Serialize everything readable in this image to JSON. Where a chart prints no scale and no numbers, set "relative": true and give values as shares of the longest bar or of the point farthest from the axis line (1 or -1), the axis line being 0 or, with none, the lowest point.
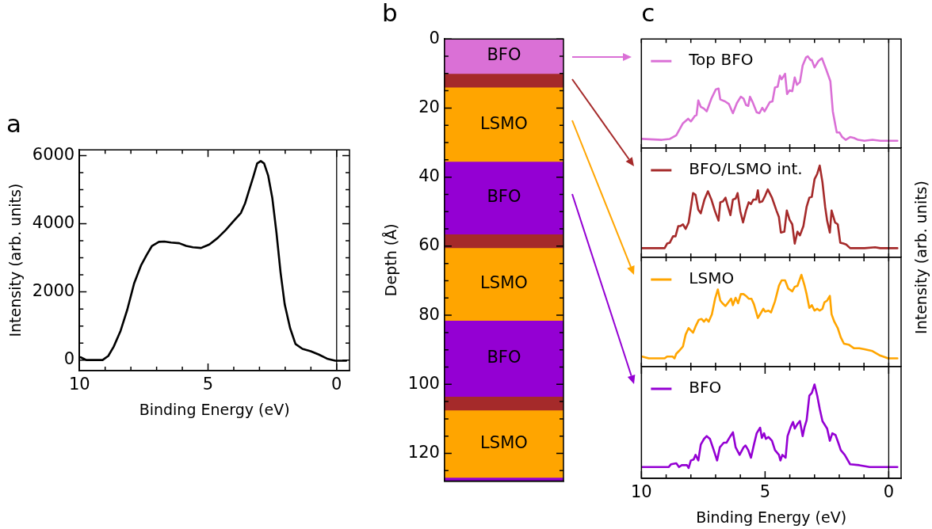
{
  "chart_data": [
    {
      "type": "line",
      "title": "a",
      "xlabel": "Binding Energy (eV)",
      "ylabel": "Intensity (arb. units)",
      "xlim": [
        10,
        -0.5
      ],
      "ylim": [
        -310,
        6170
      ],
      "xticks": [
        10,
        {
          "value": 9,
          "label": null
        },
        {
          "value": 8,
          "label": null
        },
        {
          "value": 7,
          "label": null
        },
        {
          "value": 6,
          "label": null
        },
        5,
        {
          "value": 4,
          "label": null
        },
        {
          "value": 3,
          "label": null
        },
        {
          "value": 2,
          "label": null
        },
        {
          "value": 1,
          "label": null
        },
        0
      ],
      "yticks": [
        0,
        {
          "value": 500,
          "label": null
        },
        {
          "value": 1000,
          "label": null
        },
        {
          "value": 1500,
          "label": null
        },
        2000,
        {
          "value": 2500,
          "label": null
        },
        {
          "value": 3000,
          "label": null
        },
        {
          "value": 3500,
          "label": null
        },
        4000,
        {
          "value": 4500,
          "label": null
        },
        {
          "value": 5000,
          "label": null
        },
        {
          "value": 5500,
          "label": null
        },
        6000
      ],
      "x": [
        9.95,
        9.73,
        9.1,
        8.88,
        8.67,
        8.4,
        8.14,
        7.87,
        7.61,
        7.39,
        7.18,
        6.91,
        6.7,
        6.44,
        6.12,
        5.85,
        5.59,
        5.27,
        4.95,
        4.63,
        4.31,
        4.04,
        3.72,
        3.56,
        3.4,
        3.24,
        3.09,
        2.95,
        2.82,
        2.66,
        2.5,
        2.34,
        2.18,
        2.02,
        1.81,
        1.6,
        1.33,
        1.01,
        0.69,
        0.37,
        0.05,
        -0.37
      ],
      "series": [
        {
          "color": "#000000",
          "values": [
            80,
            0,
            0,
            120,
            390,
            860,
            1480,
            2260,
            2770,
            3080,
            3350,
            3470,
            3480,
            3450,
            3430,
            3350,
            3310,
            3290,
            3390,
            3580,
            3820,
            4050,
            4320,
            4600,
            4990,
            5380,
            5770,
            5840,
            5770,
            5410,
            4750,
            3740,
            2570,
            1640,
            940,
            470,
            330,
            260,
            160,
            40,
            -20,
            -20
          ]
        }
      ],
      "ref_lines": [
        {
          "axis": "x",
          "value": 0
        }
      ],
      "marker": "none",
      "line_style": "solid",
      "grid": false,
      "legend": false
    },
    {
      "type": "bar",
      "title": "b",
      "ylabel": "Depth (Å)",
      "stacked": true,
      "categories": [
        null
      ],
      "ylim": [
        128,
        0
      ],
      "yticks": [
        0,
        {
          "value": 5,
          "label": null
        },
        {
          "value": 10,
          "label": null
        },
        {
          "value": 15,
          "label": null
        },
        20,
        {
          "value": 25,
          "label": null
        },
        {
          "value": 30,
          "label": null
        },
        {
          "value": 35,
          "label": null
        },
        40,
        {
          "value": 45,
          "label": null
        },
        {
          "value": 50,
          "label": null
        },
        {
          "value": 55,
          "label": null
        },
        60,
        {
          "value": 65,
          "label": null
        },
        {
          "value": 70,
          "label": null
        },
        {
          "value": 75,
          "label": null
        },
        80,
        {
          "value": 85,
          "label": null
        },
        {
          "value": 90,
          "label": null
        },
        {
          "value": 95,
          "label": null
        },
        100,
        {
          "value": 105,
          "label": null
        },
        {
          "value": 110,
          "label": null
        },
        {
          "value": 115,
          "label": null
        },
        120,
        {
          "value": 125,
          "label": null
        }
      ],
      "series": [
        {
          "name": "BFO",
          "color": "#da70d6",
          "values": [
            10
          ]
        },
        {
          "color": "#a52a2a",
          "values": [
            4
          ]
        },
        {
          "name": "LSMO",
          "color": "#ffa500",
          "values": [
            21.5
          ]
        },
        {
          "name": "BFO",
          "color": "#9400d3",
          "values": [
            21
          ]
        },
        {
          "color": "#a52a2a",
          "values": [
            4
          ]
        },
        {
          "name": "LSMO",
          "color": "#ffa500",
          "values": [
            21
          ]
        },
        {
          "name": "BFO",
          "color": "#9400d3",
          "values": [
            22
          ]
        },
        {
          "color": "#a52a2a",
          "values": [
            4
          ]
        },
        {
          "name": "LSMO",
          "color": "#ffa500",
          "values": [
            19.5
          ]
        },
        {
          "color": "#9400d3",
          "values": [
            1
          ]
        }
      ],
      "tick_labels": "y",
      "grid": false,
      "legend": false
    },
    {
      "type": "line",
      "title": "c",
      "relative": true,
      "xlim": [
        10,
        -0.5
      ],
      "xticks": [
        {
          "value": 10,
          "label": null
        },
        {
          "value": 9,
          "label": null
        },
        {
          "value": 8,
          "label": null
        },
        {
          "value": 7,
          "label": null
        },
        {
          "value": 6,
          "label": null
        },
        {
          "value": 5,
          "label": null
        },
        {
          "value": 4,
          "label": null
        },
        {
          "value": 3,
          "label": null
        },
        {
          "value": 2,
          "label": null
        },
        {
          "value": 1,
          "label": null
        },
        {
          "value": 0,
          "label": null
        }
      ],
      "x": [
        9.97,
        9.17,
        8.85,
        8.59,
        8.32,
        8.11,
        8.0,
        7.84,
        7.77,
        7.7,
        7.6,
        7.47,
        7.36,
        7.17,
        6.99,
        6.88,
        6.81,
        6.62,
        6.46,
        6.3,
        6.14,
        5.98,
        5.87,
        5.77,
        5.68,
        5.61,
        5.5,
        5.34,
        5.23,
        5.11,
        5.02,
        4.81,
        4.7,
        4.6,
        4.49,
        4.4,
        4.33,
        4.19,
        4.11,
        4.01,
        3.9,
        3.8,
        3.71,
        3.59,
        3.48,
        3.34,
        3.27,
        3.16,
        3.11,
        3.0,
        2.84,
        2.7,
        2.52,
        2.36,
        2.26,
        2.15,
        2.1,
        1.99,
        1.88,
        1.74,
        1.56,
        1.4,
        1.24,
        0.98,
        0.66,
        0.34,
        -0.35
      ],
      "series": [
        {
          "name": "Top BFO",
          "color": "#da70d6",
          "values": [
            0.1,
            0.09,
            0.1,
            0.14,
            0.27,
            0.32,
            0.29,
            0.35,
            0.36,
            0.52,
            0.45,
            0.43,
            0.4,
            0.54,
            0.64,
            0.65,
            0.53,
            0.51,
            0.48,
            0.38,
            0.49,
            0.56,
            0.54,
            0.47,
            0.46,
            0.56,
            0.5,
            0.39,
            0.38,
            0.44,
            0.4,
            0.5,
            0.51,
            0.66,
            0.67,
            0.79,
            0.75,
            0.81,
            0.59,
            0.63,
            0.62,
            0.77,
            0.69,
            0.72,
            0.9,
            0.99,
            1.0,
            0.96,
            0.96,
            0.88,
            0.95,
            0.98,
            0.85,
            0.73,
            0.4,
            0.24,
            0.17,
            0.17,
            0.12,
            0.09,
            0.12,
            0.11,
            0.09,
            0.08,
            0.09,
            0.08,
            0.08
          ]
        }
      ],
      "ref_lines": [
        {
          "axis": "x",
          "value": 0
        }
      ],
      "marker": "none",
      "line_style": "solid",
      "legend": "top left",
      "tick_labels": false,
      "grid": false
    },
    {
      "type": "line",
      "relative": true,
      "ylabel": "Intensity (arb. units)",
      "xlim": [
        10,
        -0.5
      ],
      "xticks": [
        {
          "value": 10,
          "label": null
        },
        {
          "value": 9,
          "label": null
        },
        {
          "value": 8,
          "label": null
        },
        {
          "value": 7,
          "label": null
        },
        {
          "value": 6,
          "label": null
        },
        {
          "value": 5,
          "label": null
        },
        {
          "value": 4,
          "label": null
        },
        {
          "value": 3,
          "label": null
        },
        {
          "value": 2,
          "label": null
        },
        {
          "value": 1,
          "label": null
        },
        {
          "value": 0,
          "label": null
        }
      ],
      "x": [
        9.97,
        9.06,
        8.96,
        8.85,
        8.72,
        8.62,
        8.51,
        8.43,
        8.32,
        8.21,
        8.09,
        7.91,
        7.81,
        7.7,
        7.6,
        7.45,
        7.31,
        7.17,
        7.02,
        6.88,
        6.81,
        6.7,
        6.6,
        6.53,
        6.4,
        6.3,
        6.19,
        6.11,
        6.0,
        5.89,
        5.77,
        5.66,
        5.57,
        5.47,
        5.36,
        5.29,
        5.23,
        5.11,
        5.0,
        4.89,
        4.72,
        4.54,
        4.44,
        4.36,
        4.22,
        4.12,
        4.01,
        3.9,
        3.8,
        3.69,
        3.59,
        3.45,
        3.32,
        3.21,
        3.11,
        3.0,
        2.89,
        2.79,
        2.68,
        2.57,
        2.49,
        2.38,
        2.31,
        2.17,
        2.06,
        1.96,
        1.83,
        1.72,
        1.56,
        0.98,
        0.55,
        0.34,
        -0.35
      ],
      "series": [
        {
          "name": "BFO/LSMO int.",
          "color": "#a52a2a",
          "values": [
            0.1,
            0.1,
            0.15,
            0.16,
            0.23,
            0.23,
            0.34,
            0.34,
            0.36,
            0.31,
            0.38,
            0.7,
            0.68,
            0.52,
            0.48,
            0.63,
            0.72,
            0.63,
            0.5,
            0.4,
            0.6,
            0.61,
            0.65,
            0.58,
            0.46,
            0.63,
            0.64,
            0.7,
            0.5,
            0.38,
            0.51,
            0.6,
            0.58,
            0.63,
            0.63,
            0.73,
            0.6,
            0.61,
            0.67,
            0.74,
            0.65,
            0.51,
            0.44,
            0.27,
            0.28,
            0.51,
            0.41,
            0.36,
            0.15,
            0.28,
            0.24,
            0.34,
            0.55,
            0.65,
            0.66,
            0.85,
            0.91,
            1.0,
            0.82,
            0.55,
            0.4,
            0.27,
            0.51,
            0.38,
            0.36,
            0.16,
            0.15,
            0.14,
            0.1,
            0.1,
            0.11,
            0.1,
            0.1
          ]
        }
      ],
      "ref_lines": [
        {
          "axis": "x",
          "value": 0
        }
      ],
      "marker": "none",
      "line_style": "solid",
      "legend": "top left",
      "tick_labels": false,
      "grid": false
    },
    {
      "type": "line",
      "relative": true,
      "xlim": [
        10,
        -0.5
      ],
      "xticks": [
        {
          "value": 10,
          "label": null
        },
        {
          "value": 9,
          "label": null
        },
        {
          "value": 8,
          "label": null
        },
        {
          "value": 7,
          "label": null
        },
        {
          "value": 6,
          "label": null
        },
        {
          "value": 5,
          "label": null
        },
        {
          "value": 4,
          "label": null
        },
        {
          "value": 3,
          "label": null
        },
        {
          "value": 2,
          "label": null
        },
        {
          "value": 1,
          "label": null
        },
        {
          "value": 0,
          "label": null
        }
      ],
      "x": [
        9.97,
        9.7,
        9.06,
        8.96,
        8.74,
        8.66,
        8.59,
        8.48,
        8.32,
        8.21,
        8.09,
        7.91,
        7.79,
        7.68,
        7.57,
        7.47,
        7.38,
        7.28,
        7.15,
        7.02,
        6.91,
        6.81,
        6.72,
        6.6,
        6.46,
        6.37,
        6.3,
        6.19,
        6.09,
        5.98,
        5.87,
        5.77,
        5.66,
        5.55,
        5.45,
        5.29,
        5.18,
        5.07,
        5.0,
        4.86,
        4.76,
        4.6,
        4.44,
        4.33,
        4.19,
        4.06,
        3.9,
        3.8,
        3.69,
        3.53,
        3.4,
        3.32,
        3.21,
        3.11,
        3.0,
        2.89,
        2.79,
        2.68,
        2.6,
        2.49,
        2.38,
        2.31,
        2.2,
        2.06,
        1.94,
        1.81,
        1.62,
        1.4,
        1.19,
        0.98,
        0.66,
        0.34,
        0.02,
        -0.35
      ],
      "series": [
        {
          "name": "LSMO",
          "color": "#ffa500",
          "values": [
            0.11,
            0.09,
            0.09,
            0.11,
            0.11,
            0.09,
            0.14,
            0.17,
            0.22,
            0.35,
            0.42,
            0.37,
            0.45,
            0.51,
            0.52,
            0.49,
            0.52,
            0.49,
            0.57,
            0.74,
            0.84,
            0.72,
            0.69,
            0.66,
            0.71,
            0.74,
            0.67,
            0.75,
            0.69,
            0.79,
            0.79,
            0.77,
            0.74,
            0.74,
            0.68,
            0.53,
            0.58,
            0.63,
            0.6,
            0.61,
            0.59,
            0.71,
            0.88,
            0.94,
            0.94,
            0.85,
            0.82,
            0.87,
            0.88,
            1.0,
            0.88,
            0.79,
            0.64,
            0.67,
            0.61,
            0.63,
            0.61,
            0.63,
            0.7,
            0.72,
            0.77,
            0.57,
            0.49,
            0.42,
            0.32,
            0.25,
            0.24,
            0.2,
            0.2,
            0.19,
            0.17,
            0.12,
            0.09,
            0.09
          ]
        }
      ],
      "ref_lines": [
        {
          "axis": "x",
          "value": 0
        }
      ],
      "marker": "none",
      "line_style": "solid",
      "legend": "top left",
      "tick_labels": false,
      "grid": false
    },
    {
      "type": "line",
      "relative": true,
      "xlabel": "Binding Energy (eV)",
      "xlim": [
        10,
        -0.5
      ],
      "xticks": [
        10,
        {
          "value": 9,
          "label": null
        },
        {
          "value": 8,
          "label": null
        },
        {
          "value": 7,
          "label": null
        },
        {
          "value": 6,
          "label": null
        },
        5,
        {
          "value": 4,
          "label": null
        },
        {
          "value": 3,
          "label": null
        },
        {
          "value": 2,
          "label": null
        },
        {
          "value": 1,
          "label": null
        },
        0
      ],
      "x": [
        9.97,
        8.9,
        8.8,
        8.59,
        8.48,
        8.37,
        8.16,
        8.09,
        8.0,
        7.89,
        7.81,
        7.7,
        7.6,
        7.47,
        7.36,
        7.23,
        7.1,
        6.94,
        6.83,
        6.67,
        6.56,
        6.4,
        6.3,
        6.19,
        6.03,
        5.87,
        5.79,
        5.68,
        5.57,
        5.45,
        5.34,
        5.2,
        5.13,
        5.04,
        4.97,
        4.86,
        4.72,
        4.6,
        4.44,
        4.38,
        4.3,
        4.17,
        4.09,
        3.96,
        3.87,
        3.8,
        3.69,
        3.59,
        3.48,
        3.4,
        3.32,
        3.21,
        3.11,
        3.0,
        2.89,
        2.79,
        2.68,
        2.49,
        2.38,
        2.28,
        2.15,
        2.04,
        1.94,
        1.78,
        1.56,
        1.19,
        0.77,
        0.02,
        -0.35
      ],
      "series": [
        {
          "name": "BFO",
          "color": "#9400d3",
          "values": [
            0.12,
            0.12,
            0.15,
            0.16,
            0.12,
            0.14,
            0.14,
            0.11,
            0.19,
            0.2,
            0.25,
            0.19,
            0.36,
            0.42,
            0.45,
            0.42,
            0.32,
            0.19,
            0.33,
            0.38,
            0.38,
            0.45,
            0.49,
            0.33,
            0.25,
            0.33,
            0.35,
            0.3,
            0.22,
            0.36,
            0.48,
            0.54,
            0.43,
            0.48,
            0.42,
            0.44,
            0.4,
            0.3,
            0.25,
            0.19,
            0.25,
            0.22,
            0.45,
            0.55,
            0.6,
            0.53,
            0.58,
            0.61,
            0.45,
            0.55,
            0.62,
            0.88,
            0.91,
            1.0,
            0.88,
            0.74,
            0.61,
            0.53,
            0.4,
            0.48,
            0.46,
            0.38,
            0.3,
            0.25,
            0.15,
            0.14,
            0.12,
            0.12,
            0.12
          ]
        }
      ],
      "ref_lines": [
        {
          "axis": "x",
          "value": 0
        }
      ],
      "marker": "none",
      "line_style": "solid",
      "legend": "top left",
      "tick_labels": "x",
      "grid": false
    }
  ]
}
